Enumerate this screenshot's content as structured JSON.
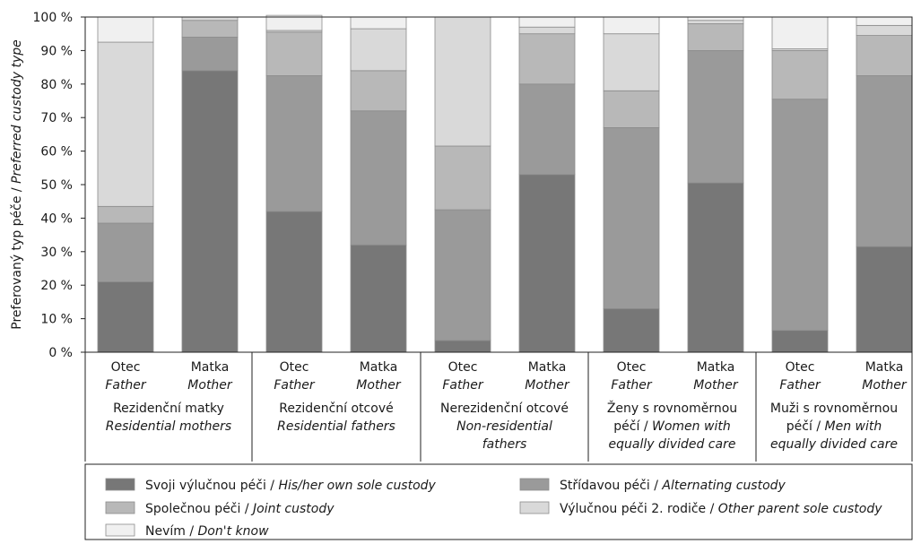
{
  "chart_data": {
    "type": "bar",
    "stacked": true,
    "title": "",
    "ylabel_cs": "Preferovaný typ péče",
    "ylabel_en": "Preferred custody type",
    "ylim": [
      0,
      100
    ],
    "y_ticks": [
      "0 %",
      "10 %",
      "20 %",
      "30 %",
      "40 %",
      "50 %",
      "60 %",
      "70 %",
      "80 %",
      "90 %",
      "100 %"
    ],
    "grid": false,
    "legend_position": "bottom",
    "parent_labels": [
      {
        "cs": "Otec",
        "en": "Father"
      },
      {
        "cs": "Matka",
        "en": "Mother"
      }
    ],
    "groups": [
      {
        "lines": [
          {
            "text": "Rezidenční matky",
            "italic": false
          },
          {
            "text": "Residential mothers",
            "italic": true
          }
        ]
      },
      {
        "lines": [
          {
            "text": "Rezidenční otcové",
            "italic": false
          },
          {
            "text": "Residential fathers",
            "italic": true
          }
        ]
      },
      {
        "lines": [
          {
            "text": "Nerezidenční otcové",
            "italic": false
          },
          {
            "text": "Non-residential",
            "italic": true
          },
          {
            "text": "fathers",
            "italic": true
          }
        ]
      },
      {
        "lines": [
          {
            "text": "Ženy s rovnoměrnou",
            "italic": false
          },
          {
            "text": "péčí / ",
            "italic": false,
            "tail": "Women with",
            "tail_italic": true
          },
          {
            "text": "equally divided care",
            "italic": true
          }
        ]
      },
      {
        "lines": [
          {
            "text": "Muži s rovnoměrnou",
            "italic": false
          },
          {
            "text": "péčí / ",
            "italic": false,
            "tail": "Men with",
            "tail_italic": true
          },
          {
            "text": "equally divided care",
            "italic": true
          }
        ]
      }
    ],
    "series": [
      {
        "name_cs": "Svoji výlučnou péči",
        "name_en": "His/her own sole custody",
        "color": "#777777",
        "values": [
          21,
          84,
          42,
          32,
          3.5,
          53,
          13,
          50.5,
          6.5,
          31.5
        ]
      },
      {
        "name_cs": "Střídavou péči",
        "name_en": "Alternating custody",
        "color": "#9a9a9a",
        "values": [
          17.5,
          10,
          40.5,
          40,
          39,
          27,
          54,
          39.5,
          69,
          51
        ]
      },
      {
        "name_cs": "Společnou péči",
        "name_en": "Joint custody",
        "color": "#b8b8b8",
        "values": [
          5,
          5,
          13,
          12,
          19,
          15,
          11,
          8,
          14.5,
          12
        ]
      },
      {
        "name_cs": "Výlučnou péči 2. rodiče",
        "name_en": "Other parent sole custody",
        "color": "#d9d9d9",
        "values": [
          49,
          1,
          0.5,
          12.5,
          38.5,
          2,
          17,
          1,
          0.5,
          3
        ]
      },
      {
        "name_cs": "Nevím",
        "name_en": "Don't know",
        "color": "#f0f0f0",
        "values": [
          7.5,
          0,
          4.5,
          3.5,
          0,
          3,
          5,
          1,
          9.5,
          2.5
        ]
      }
    ]
  }
}
